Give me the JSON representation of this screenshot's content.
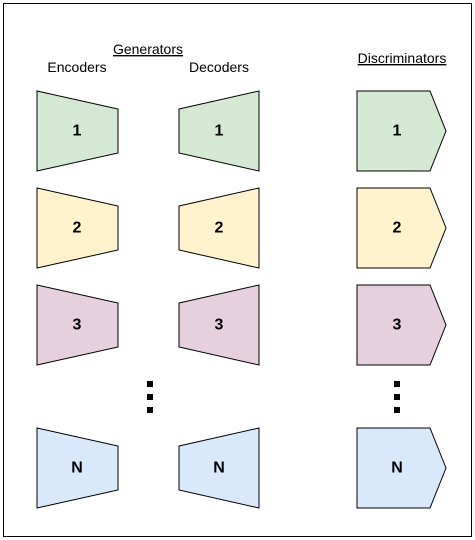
{
  "headers": {
    "generators": "Generators",
    "encoders": "Encoders",
    "decoders": "Decoders",
    "discriminators": "Discriminators"
  },
  "rows": [
    {
      "label": "1",
      "fill": "#d5e8d4"
    },
    {
      "label": "2",
      "fill": "#fff2cc"
    },
    {
      "label": "3",
      "fill": "#e6d0de"
    },
    {
      "label": "N",
      "fill": "#dae8fc"
    }
  ],
  "ellipsis_dots": 3,
  "colors": {
    "stroke": "#000000",
    "frame": "#000000",
    "background": "#ffffff"
  }
}
